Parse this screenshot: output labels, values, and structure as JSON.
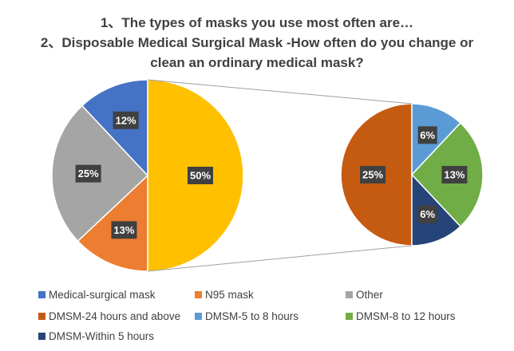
{
  "chart_data": {
    "type": "pie",
    "subtype": "pie-of-pie",
    "title": [
      "1、The types of masks you use most often are…",
      "2、Disposable Medical Surgical Mask -How often do you change or",
      "clean an ordinary medical mask?"
    ],
    "main_pie": {
      "slices": [
        {
          "name": "Medical-surgical mask",
          "value": 50,
          "label": "50%",
          "color": "#FFC000"
        },
        {
          "name": "N95 mask",
          "value": 13,
          "label": "13%",
          "color": "#ED7D31"
        },
        {
          "name": "Other",
          "value": 25,
          "label": "25%",
          "color": "#A5A5A5"
        },
        {
          "name": "Medical-surgical mask",
          "value": 12,
          "label": "12%",
          "color": "#4472C4"
        }
      ]
    },
    "secondary_pie": {
      "slices": [
        {
          "name": "DMSM-24 hours and above",
          "value": 25,
          "label": "25%",
          "color": "#C55A11"
        },
        {
          "name": "DMSM-5 to 8 hours",
          "value": 6,
          "label": "6%",
          "color": "#5B9BD5"
        },
        {
          "name": "DMSM-8 to 12 hours",
          "value": 13,
          "label": "13%",
          "color": "#70AD47"
        },
        {
          "name": "DMSM-Within 5 hours",
          "value": 6,
          "label": "6%",
          "color": "#264478"
        }
      ]
    },
    "legend": [
      {
        "name": "Medical-surgical mask",
        "color": "#4472C4"
      },
      {
        "name": "N95 mask",
        "color": "#ED7D31"
      },
      {
        "name": "Other",
        "color": "#A5A5A5"
      },
      {
        "name": "DMSM-24 hours and above",
        "color": "#C55A11"
      },
      {
        "name": "DMSM-5 to 8 hours",
        "color": "#5B9BD5"
      },
      {
        "name": "DMSM-8 to 12 hours",
        "color": "#70AD47"
      },
      {
        "name": "DMSM-Within 5 hours",
        "color": "#264478"
      }
    ],
    "legend_position": "bottom"
  }
}
